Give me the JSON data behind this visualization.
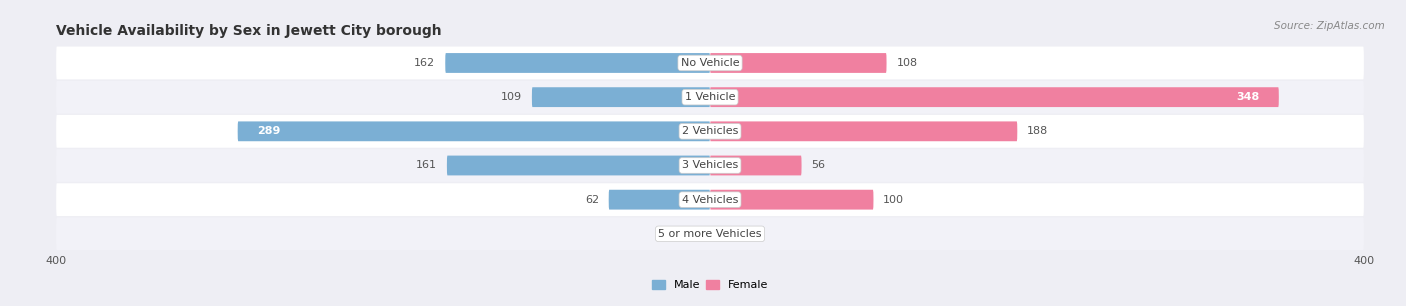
{
  "title": "Vehicle Availability by Sex in Jewett City borough",
  "source": "Source: ZipAtlas.com",
  "categories": [
    "No Vehicle",
    "1 Vehicle",
    "2 Vehicles",
    "3 Vehicles",
    "4 Vehicles",
    "5 or more Vehicles"
  ],
  "male_values": [
    162,
    109,
    289,
    161,
    62,
    0
  ],
  "female_values": [
    108,
    348,
    188,
    56,
    100,
    0
  ],
  "male_color": "#7BAFD4",
  "female_color": "#F080A0",
  "male_color_light": "#B8D8EC",
  "female_color_light": "#F5AABF",
  "bar_height": 0.58,
  "xlim": 400,
  "legend_male": "Male",
  "legend_female": "Female",
  "bg_color": "#EEEEF4",
  "row_bg": "#FFFFFF",
  "row_bg2": "#F2F2F8",
  "title_fontsize": 10,
  "label_fontsize": 8,
  "value_fontsize": 8,
  "source_fontsize": 7.5,
  "inside_label_threshold": 280,
  "female_inside_threshold": 330
}
